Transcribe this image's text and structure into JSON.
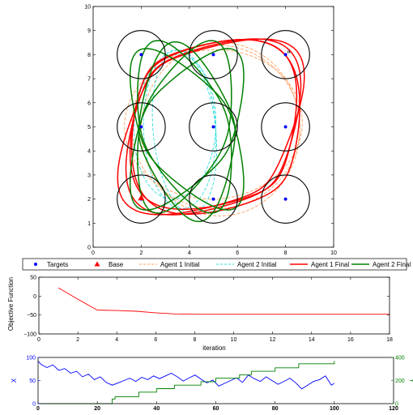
{
  "chart_data": [
    {
      "type": "scatter",
      "xlim": [
        0,
        10
      ],
      "ylim": [
        0,
        10
      ],
      "x_ticks": [
        "0",
        "2",
        "4",
        "6",
        "8",
        "10"
      ],
      "y_ticks": [
        "0",
        "1",
        "2",
        "3",
        "4",
        "5",
        "6",
        "7",
        "8",
        "9",
        "10"
      ],
      "grid": false,
      "legend": {
        "placement": "bottom",
        "entries": [
          "Targets",
          "Base",
          "Agent 1 Initial",
          "Agent 2 Initial",
          "Agent 1 Final",
          "Agent 2 Final"
        ]
      },
      "colors": {
        "targets": "#0000ff",
        "base": "#ff0000",
        "agent1_initial": "#ffa060",
        "agent2_initial": "#33dddd",
        "agent1_final": "#ff0000",
        "agent2_final": "#008000"
      },
      "targets": [
        {
          "x": 2,
          "y": 2,
          "label": ""
        },
        {
          "x": 5,
          "y": 2,
          "label": ""
        },
        {
          "x": 8,
          "y": 2,
          "label": ""
        },
        {
          "x": 2,
          "y": 5,
          "label": ""
        },
        {
          "x": 5,
          "y": 5,
          "label": ""
        },
        {
          "x": 8,
          "y": 5,
          "label": ""
        },
        {
          "x": 2,
          "y": 8,
          "label": ""
        },
        {
          "x": 5,
          "y": 8,
          "label": ""
        },
        {
          "x": 8,
          "y": 8,
          "label": "a"
        }
      ],
      "target_radius": 1,
      "base": {
        "x": 2,
        "y": 2.05
      },
      "series": [
        {
          "name": "Agent 1 Initial",
          "style": "dashed",
          "loops": [
            {
              "cx": 5.1,
              "cy": 5.0,
              "ax": 3.5,
              "ay": 3.4,
              "rot": 0
            },
            {
              "cx": 5.0,
              "cy": 5.1,
              "ax": 3.7,
              "ay": 3.1,
              "rot": 0.08
            },
            {
              "cx": 5.3,
              "cy": 4.9,
              "ax": 3.3,
              "ay": 3.6,
              "rot": -0.06
            }
          ]
        },
        {
          "name": "Agent 2 Initial",
          "style": "dashed",
          "loops": [
            {
              "cx": 3.6,
              "cy": 4.9,
              "ax": 1.5,
              "ay": 3.3,
              "rot": 0.04
            },
            {
              "cx": 3.4,
              "cy": 5.0,
              "ax": 1.7,
              "ay": 3.0,
              "rot": -0.05
            },
            {
              "cx": 3.8,
              "cy": 4.8,
              "ax": 1.3,
              "ay": 3.4,
              "rot": 0.1
            }
          ]
        },
        {
          "name": "Agent 1 Final",
          "style": "solid",
          "loops": [
            {
              "cx": 5.0,
              "cy": 5.0,
              "ax": 3.4,
              "ay": 3.4,
              "rot": -0.78,
              "squash": 0.32
            },
            {
              "cx": 5.1,
              "cy": 5.0,
              "ax": 3.6,
              "ay": 3.3,
              "rot": -0.72,
              "squash": 0.26
            },
            {
              "cx": 4.9,
              "cy": 5.0,
              "ax": 3.3,
              "ay": 3.5,
              "rot": -0.84,
              "squash": 0.36
            },
            {
              "cx": 5.0,
              "cy": 5.1,
              "ax": 3.5,
              "ay": 3.2,
              "rot": -0.76,
              "squash": 0.3
            }
          ]
        },
        {
          "name": "Agent 2 Final",
          "style": "solid",
          "loops": [
            {
              "cx": 3.9,
              "cy": 4.9,
              "ax": 1.9,
              "ay": 3.0,
              "rot": 0.55,
              "squash": 0.28
            },
            {
              "cx": 3.9,
              "cy": 4.9,
              "ax": 1.9,
              "ay": 3.0,
              "rot": -0.55,
              "squash": 0.28
            },
            {
              "cx": 3.8,
              "cy": 5.0,
              "ax": 1.8,
              "ay": 3.1,
              "rot": 0.35,
              "squash": 0.22
            },
            {
              "cx": 3.8,
              "cy": 5.0,
              "ax": 1.8,
              "ay": 3.1,
              "rot": -0.35,
              "squash": 0.22
            },
            {
              "cx": 3.9,
              "cy": 4.8,
              "ax": 2.0,
              "ay": 2.9,
              "rot": 0.15,
              "squash": 0.3
            }
          ]
        }
      ]
    },
    {
      "type": "line",
      "xlabel": "iteration",
      "ylabel": "Objective Function",
      "xlim": [
        0,
        18
      ],
      "ylim": [
        -100,
        50
      ],
      "x_ticks": [
        "0",
        "2",
        "4",
        "6",
        "8",
        "10",
        "12",
        "14",
        "16",
        "18"
      ],
      "y_ticks": [
        "50",
        "0",
        "−50",
        "−100"
      ],
      "grid": false,
      "series": [
        {
          "color": "#ff0000",
          "x": [
            1,
            2,
            3,
            4,
            5,
            6,
            7,
            8,
            9,
            10,
            11,
            12,
            13,
            14,
            15,
            16,
            17,
            18
          ],
          "y": [
            22,
            -8,
            -37,
            -38,
            -40,
            -44,
            -47,
            -48,
            -48,
            -48,
            -48,
            -48,
            -48,
            -48,
            -48,
            -48,
            -48,
            -48
          ]
        }
      ]
    },
    {
      "type": "line",
      "ylabel_left": "X",
      "ylabel_right": "Y",
      "xlim": [
        0,
        120
      ],
      "ylim_left": [
        0,
        100
      ],
      "ylim_right": [
        0,
        400
      ],
      "x_ticks": [
        "0",
        "20",
        "40",
        "60",
        "80",
        "100",
        "120"
      ],
      "y_ticks_left": [
        "0",
        "50",
        "100"
      ],
      "y_ticks_right": [
        "0",
        "200",
        "400"
      ],
      "grid": false,
      "series": [
        {
          "axis": "left",
          "color": "#0000ff",
          "x": [
            0,
            1,
            3,
            5,
            7,
            9,
            11,
            13,
            15,
            17,
            19,
            21,
            23,
            25,
            27,
            29,
            31,
            33,
            35,
            37,
            39,
            41,
            43,
            45,
            47,
            49,
            51,
            53,
            55,
            57,
            59,
            61,
            63,
            65,
            67,
            69,
            71,
            73,
            75,
            77,
            79,
            81,
            83,
            85,
            87,
            89,
            91,
            93,
            95,
            97,
            99,
            100
          ],
          "y": [
            92,
            85,
            78,
            84,
            72,
            76,
            66,
            70,
            58,
            64,
            52,
            58,
            46,
            40,
            45,
            50,
            55,
            48,
            57,
            52,
            60,
            54,
            60,
            66,
            58,
            49,
            56,
            62,
            53,
            45,
            51,
            38,
            44,
            50,
            56,
            46,
            62,
            54,
            48,
            58,
            50,
            42,
            48,
            55,
            45,
            32,
            40,
            48,
            52,
            60,
            40,
            44
          ]
        },
        {
          "axis": "right",
          "color": "#008000",
          "x": [
            0,
            25,
            25,
            26,
            26,
            34,
            34,
            40,
            40,
            46,
            46,
            55,
            55,
            60,
            60,
            68,
            68,
            72,
            72,
            80,
            80,
            88,
            88,
            100,
            100
          ],
          "y": [
            0,
            0,
            40,
            40,
            60,
            60,
            100,
            100,
            130,
            130,
            160,
            160,
            190,
            190,
            220,
            220,
            250,
            250,
            280,
            280,
            310,
            310,
            345,
            345,
            370
          ]
        }
      ]
    }
  ]
}
